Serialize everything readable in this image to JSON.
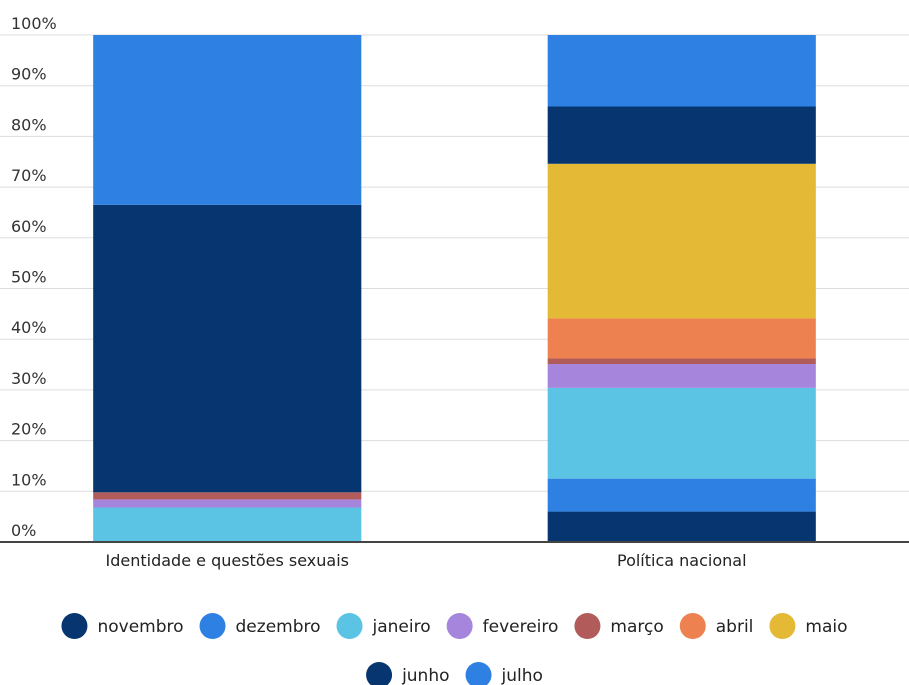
{
  "chart_data": {
    "type": "bar",
    "stacked": true,
    "normalized": true,
    "categories": [
      "Identidade e questões sexuais",
      "Política nacional"
    ],
    "y_ticks": [
      "0%",
      "10%",
      "20%",
      "30%",
      "40%",
      "50%",
      "60%",
      "70%",
      "80%",
      "90%",
      "100%"
    ],
    "ylim": [
      0,
      100
    ],
    "grid": true,
    "legend_position": "bottom",
    "series": [
      {
        "name": "novembro",
        "color": "#06356f",
        "values": [
          0.0,
          6.0
        ]
      },
      {
        "name": "dezembro",
        "color": "#2f80e3",
        "values": [
          0.0,
          6.5
        ]
      },
      {
        "name": "janeiro",
        "color": "#5bc4e5",
        "values": [
          6.8,
          17.9
        ]
      },
      {
        "name": "fevereiro",
        "color": "#a685dd",
        "values": [
          1.6,
          4.7
        ]
      },
      {
        "name": "março",
        "color": "#b15b5b",
        "values": [
          1.4,
          1.1
        ]
      },
      {
        "name": "abril",
        "color": "#ee8150",
        "values": [
          0.0,
          7.9
        ]
      },
      {
        "name": "maio",
        "color": "#e4b936",
        "values": [
          0.0,
          30.5
        ]
      },
      {
        "name": "junho",
        "color": "#06356f",
        "values": [
          56.7,
          11.3
        ]
      },
      {
        "name": "julho",
        "color": "#2f80e3",
        "values": [
          33.5,
          14.1
        ]
      }
    ]
  }
}
